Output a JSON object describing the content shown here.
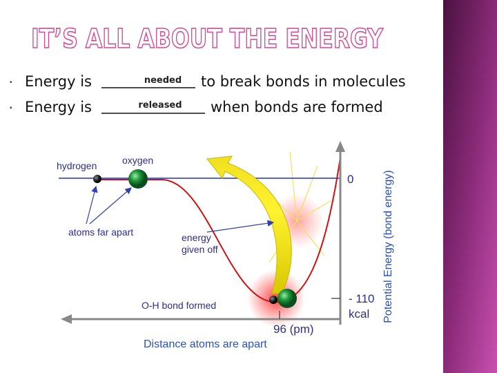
{
  "header": {
    "title": "IT’S ALL ABOUT THE ENERGY"
  },
  "bullets": [
    {
      "prefix": "Energy is",
      "answer": "needed",
      "suffix": "to break bonds in molecules"
    },
    {
      "prefix": "Energy is",
      "answer": "released",
      "suffix": "when bonds are formed"
    }
  ],
  "diagram": {
    "labels": {
      "hydrogen": "hydrogen",
      "oxygen": "oxygen",
      "far_apart": "atoms far apart",
      "energy": [
        "energy",
        "given off"
      ],
      "bond_formed": "O-H bond formed",
      "zero": "0",
      "minimum": [
        "- 110",
        "kcal"
      ],
      "distance": "96 (pm)",
      "x_axis": "Distance atoms are apart",
      "y_axis": "Potential Energy (bond energy)"
    }
  }
}
